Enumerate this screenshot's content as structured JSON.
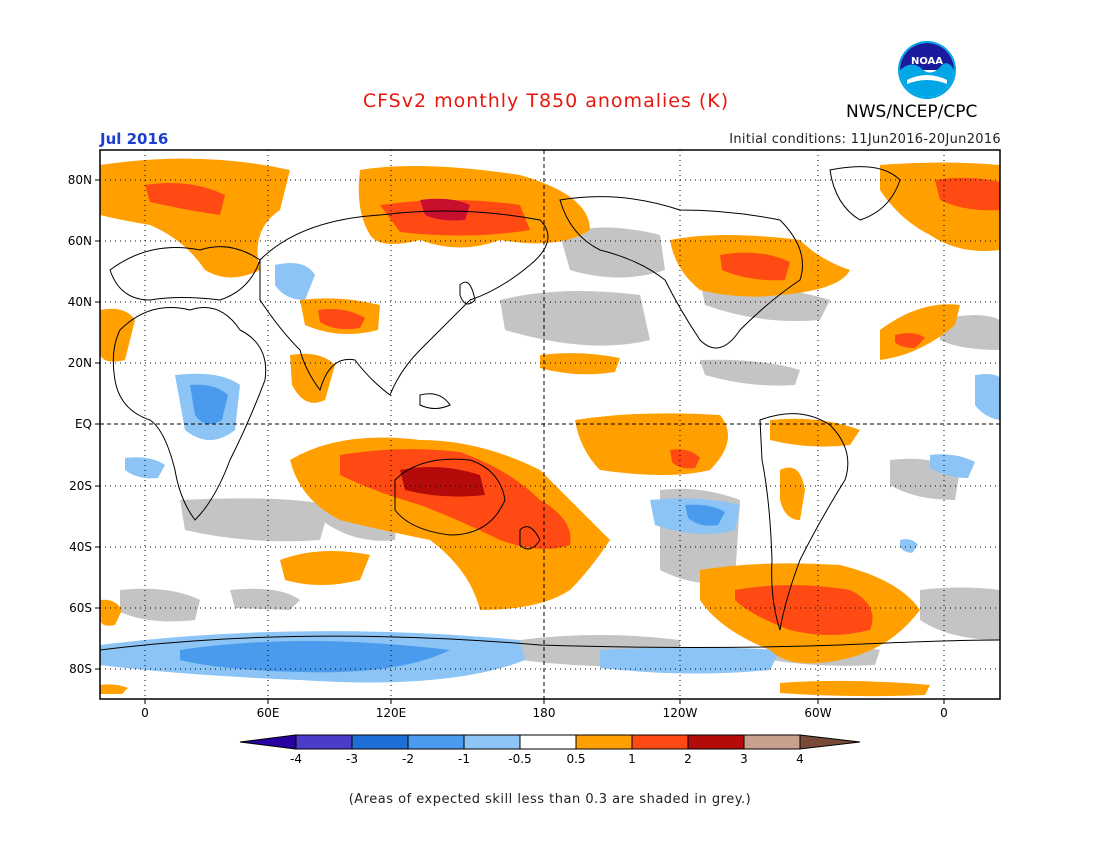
{
  "title": "CFSv2 monthly T850 anomalies (K)",
  "agency": "NWS/NCEP/CPC",
  "logo_text": "NOAA",
  "period": "Jul 2016",
  "initial_conditions": "Initial conditions: 11Jun2016-20Jun2016",
  "note": "(Areas of expected skill less than 0.3 are shaded in grey.)",
  "colors": {
    "title": "#e8170f",
    "period": "#1c3fd0",
    "grey_mask": "#c4c4c4"
  },
  "map": {
    "y_axis_labels": [
      "80N",
      "60N",
      "40N",
      "20N",
      "EQ",
      "20S",
      "40S",
      "60S",
      "80S"
    ],
    "x_axis_labels": [
      "0",
      "60E",
      "120E",
      "180",
      "120W",
      "60W",
      "0"
    ]
  },
  "colorbar": {
    "labels": [
      "-4",
      "-3",
      "-2",
      "-1",
      "-0.5",
      "0.5",
      "1",
      "2",
      "3",
      "4"
    ],
    "colors": [
      "#2a00a0",
      "#4c3ccc",
      "#1f6fd6",
      "#4a9bed",
      "#8cc4f5",
      "#ffffff",
      "#ffa000",
      "#ff4a14",
      "#b40a0a",
      "#c8a08c",
      "#7a4a38"
    ]
  }
}
